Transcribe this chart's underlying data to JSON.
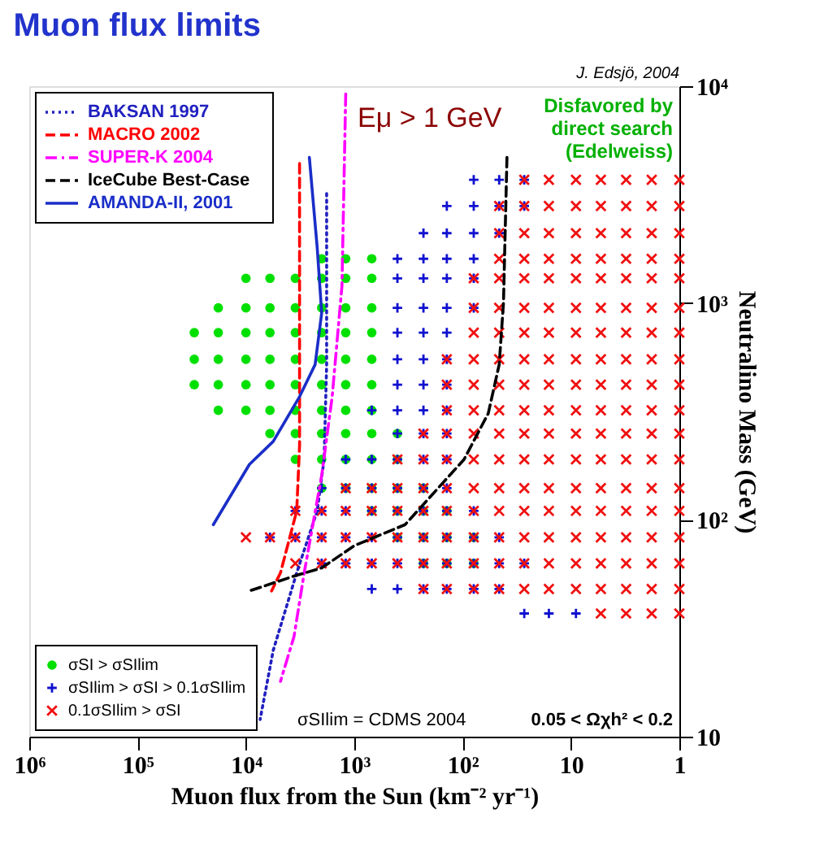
{
  "chart_data": {
    "type": "scatter",
    "title": "Muon flux limits",
    "xlabel": "Muon flux from the Sun (km⁻² yr⁻¹)",
    "ylabel": "Neutralino Mass (GeV)",
    "log": "xy",
    "xlim": [
      1000000,
      1
    ],
    "ylim": [
      10,
      10000
    ],
    "xticks": [
      {
        "value": 1000000,
        "label": "10⁶"
      },
      {
        "value": 100000,
        "label": "10⁵"
      },
      {
        "value": 10000,
        "label": "10⁴"
      },
      {
        "value": 1000,
        "label": "10³"
      },
      {
        "value": 100,
        "label": "10²"
      },
      10,
      1
    ],
    "yticks": [
      10,
      {
        "value": 100,
        "label": "10²"
      },
      {
        "value": 1000,
        "label": "10³"
      },
      {
        "value": 10000,
        "label": "10⁴"
      }
    ],
    "grid": false,
    "legend": "left",
    "annotations": [
      "J. Edsjö, 2004",
      "Eμ > 1 GeV",
      "Disfavored by\ndirect search\n(Edelweiss)",
      "σSIlim = CDMS 2004",
      "0.05 < Ωχh² < 0.2"
    ],
    "series": [
      {
        "name": "σSI > σSIlim",
        "color": "#00e000",
        "marker": "circle",
        "x": [
          2000,
          1200,
          690,
          10000,
          6000,
          3500,
          2000,
          1200,
          690,
          18000,
          10000,
          6000,
          3500,
          2000,
          1200,
          690,
          30000,
          18000,
          10000,
          6000,
          3500,
          2000,
          1200,
          690,
          30000,
          18000,
          10000,
          6000,
          3500,
          2000,
          1200,
          690,
          30000,
          18000,
          10000,
          6000,
          3500,
          2000,
          1200,
          690,
          18000,
          10000,
          6000,
          3500,
          2000,
          1200,
          690,
          6000,
          3500,
          2000,
          1200,
          690,
          400,
          3500,
          2000,
          1200,
          690,
          400,
          2000,
          1200,
          690,
          400,
          230,
          690,
          400,
          230,
          140,
          400,
          230,
          140,
          79,
          230,
          140,
          79
        ],
        "values": [
          1600,
          1600,
          1600,
          1300,
          1300,
          1300,
          1300,
          1300,
          1300,
          950,
          950,
          950,
          950,
          950,
          950,
          950,
          730,
          730,
          730,
          730,
          730,
          730,
          730,
          730,
          550,
          550,
          550,
          550,
          550,
          550,
          550,
          550,
          420,
          420,
          420,
          420,
          420,
          420,
          420,
          420,
          320,
          320,
          320,
          320,
          320,
          320,
          320,
          250,
          250,
          250,
          250,
          250,
          250,
          190,
          190,
          190,
          190,
          190,
          140,
          140,
          140,
          140,
          140,
          110,
          110,
          110,
          110,
          83,
          83,
          83,
          83,
          63,
          63,
          63
        ]
      },
      {
        "name": "σSIlim > σSI > 0.1σSIlim",
        "color": "#1010d0",
        "marker": "plus",
        "x": [
          79,
          46,
          27,
          140,
          79,
          46,
          27,
          230,
          140,
          79,
          46,
          400,
          230,
          140,
          79,
          400,
          230,
          140,
          79,
          400,
          230,
          140,
          79,
          400,
          230,
          140,
          400,
          230,
          140,
          400,
          230,
          140,
          690,
          400,
          230,
          140,
          400,
          230,
          140,
          1200,
          690,
          400,
          230,
          140,
          2000,
          1200,
          690,
          400,
          230,
          140,
          3500,
          2000,
          1200,
          690,
          400,
          230,
          140,
          79,
          6000,
          3500,
          2000,
          1200,
          690,
          400,
          230,
          140,
          79,
          46,
          2000,
          1200,
          690,
          400,
          230,
          140,
          79,
          46,
          27,
          690,
          400,
          230,
          140,
          79,
          46,
          27,
          16,
          9
        ],
        "values": [
          3700,
          3700,
          3700,
          2800,
          2800,
          2800,
          2800,
          2100,
          2100,
          2100,
          2100,
          1600,
          1600,
          1600,
          1600,
          1300,
          1300,
          1300,
          1300,
          950,
          950,
          950,
          950,
          730,
          730,
          730,
          550,
          550,
          550,
          420,
          420,
          420,
          320,
          320,
          320,
          320,
          250,
          250,
          250,
          190,
          190,
          190,
          190,
          190,
          140,
          140,
          140,
          140,
          140,
          140,
          110,
          110,
          110,
          110,
          110,
          110,
          110,
          110,
          83,
          83,
          83,
          83,
          83,
          83,
          83,
          83,
          83,
          83,
          63,
          63,
          63,
          63,
          63,
          63,
          63,
          63,
          63,
          48,
          48,
          48,
          48,
          48,
          48,
          37,
          37,
          37
        ]
      },
      {
        "name": "0.1σSIlim > σSI",
        "color": "#f01010",
        "marker": "cross",
        "x": [
          27,
          16,
          9,
          5.3,
          3.1,
          1.8,
          1,
          46,
          27,
          16,
          9,
          5.3,
          3.1,
          1.8,
          1,
          46,
          27,
          16,
          9,
          5.3,
          3.1,
          1.8,
          1,
          46,
          27,
          16,
          9,
          5.3,
          3.1,
          1.8,
          1,
          79,
          46,
          27,
          16,
          9,
          5.3,
          3.1,
          1.8,
          1,
          79,
          46,
          27,
          16,
          9,
          5.3,
          3.1,
          1.8,
          1,
          79,
          46,
          27,
          16,
          9,
          5.3,
          3.1,
          1.8,
          1,
          140,
          79,
          46,
          27,
          16,
          9,
          5.3,
          3.1,
          1.8,
          1,
          140,
          79,
          46,
          27,
          16,
          9,
          5.3,
          3.1,
          1.8,
          1,
          140,
          79,
          46,
          27,
          16,
          9,
          5.3,
          3.1,
          1.8,
          1,
          230,
          140,
          79,
          46,
          27,
          16,
          9,
          5.3,
          3.1,
          1.8,
          1,
          400,
          230,
          140,
          79,
          46,
          27,
          16,
          9,
          5.3,
          3.1,
          1.8,
          1,
          1200,
          690,
          400,
          230,
          140,
          79,
          46,
          27,
          16,
          9,
          5.3,
          3.1,
          1.8,
          1,
          3500,
          2000,
          1200,
          690,
          400,
          230,
          140,
          79,
          46,
          27,
          16,
          9,
          5.3,
          3.1,
          1.8,
          1,
          10000,
          6000,
          3500,
          2000,
          1200,
          690,
          400,
          230,
          140,
          79,
          46,
          27,
          16,
          9,
          5.3,
          3.1,
          1.8,
          1,
          3500,
          2000,
          1200,
          690,
          400,
          230,
          140,
          79,
          46,
          27,
          16,
          9,
          5.3,
          3.1,
          1.8,
          1,
          230,
          140,
          79,
          46,
          27,
          16,
          9,
          5.3,
          3.1,
          1.8,
          1,
          5.3,
          3.1,
          1.8,
          1
        ],
        "values": [
          3700,
          3700,
          3700,
          3700,
          3700,
          3700,
          3700,
          2800,
          2800,
          2800,
          2800,
          2800,
          2800,
          2800,
          2800,
          2100,
          2100,
          2100,
          2100,
          2100,
          2100,
          2100,
          2100,
          1600,
          1600,
          1600,
          1600,
          1600,
          1600,
          1600,
          1600,
          1300,
          1300,
          1300,
          1300,
          1300,
          1300,
          1300,
          1300,
          1300,
          950,
          950,
          950,
          950,
          950,
          950,
          950,
          950,
          950,
          730,
          730,
          730,
          730,
          730,
          730,
          730,
          730,
          730,
          550,
          550,
          550,
          550,
          550,
          550,
          550,
          550,
          550,
          550,
          420,
          420,
          420,
          420,
          420,
          420,
          420,
          420,
          420,
          420,
          320,
          320,
          320,
          320,
          320,
          320,
          320,
          320,
          320,
          320,
          250,
          250,
          250,
          250,
          250,
          250,
          250,
          250,
          250,
          250,
          250,
          190,
          190,
          190,
          190,
          190,
          190,
          190,
          190,
          190,
          190,
          190,
          190,
          140,
          140,
          140,
          140,
          140,
          140,
          140,
          140,
          140,
          140,
          140,
          140,
          140,
          140,
          110,
          110,
          110,
          110,
          110,
          110,
          110,
          110,
          110,
          110,
          110,
          110,
          110,
          110,
          110,
          110,
          83,
          83,
          83,
          83,
          83,
          83,
          83,
          83,
          83,
          83,
          83,
          83,
          83,
          83,
          83,
          83,
          83,
          83,
          63,
          63,
          63,
          63,
          63,
          63,
          63,
          63,
          63,
          63,
          63,
          63,
          63,
          63,
          63,
          63,
          48,
          48,
          48,
          48,
          48,
          48,
          48,
          48,
          48,
          48,
          48,
          37,
          37,
          37,
          37
        ]
      },
      {
        "name": "BAKSAN 1997",
        "color": "#2020c0",
        "type": "line",
        "line_style": "dotted",
        "x": [
          1800,
          1800,
          1900,
          2200,
          3400,
          5600,
          7400
        ],
        "values": [
          3200,
          520,
          190,
          110,
          57,
          25,
          12
        ]
      },
      {
        "name": "MACRO 2002",
        "color": "#ff0000",
        "type": "line",
        "line_style": "dashed",
        "x": [
          3200,
          3200,
          3400,
          4800,
          5800
        ],
        "values": [
          4400,
          220,
          110,
          57,
          47
        ]
      },
      {
        "name": "SUPER-K 2004",
        "color": "#ff00ff",
        "type": "line",
        "line_style": "dashdot",
        "x": [
          1200,
          1300,
          1600,
          2000,
          2900,
          3600,
          4800
        ],
        "values": [
          9200,
          1200,
          370,
          160,
          57,
          29,
          18
        ]
      },
      {
        "name": "IceCube Best-Case",
        "color": "#000000",
        "type": "line",
        "line_style": "dashed",
        "x": [
          39,
          42,
          46,
          58,
          97,
          340,
          1000,
          2000,
          3600,
          9300
        ],
        "values": [
          4700,
          1000,
          520,
          310,
          190,
          95,
          76,
          60,
          55,
          47
        ]
      },
      {
        "name": "AMANDA-II, 2001",
        "color": "#1a2ec8",
        "type": "line",
        "line_style": "solid",
        "x": [
          2600,
          2200,
          2000,
          2300,
          3200,
          5600,
          9300,
          20000
        ],
        "values": [
          4700,
          1800,
          900,
          520,
          370,
          230,
          180,
          95
        ]
      }
    ]
  }
}
